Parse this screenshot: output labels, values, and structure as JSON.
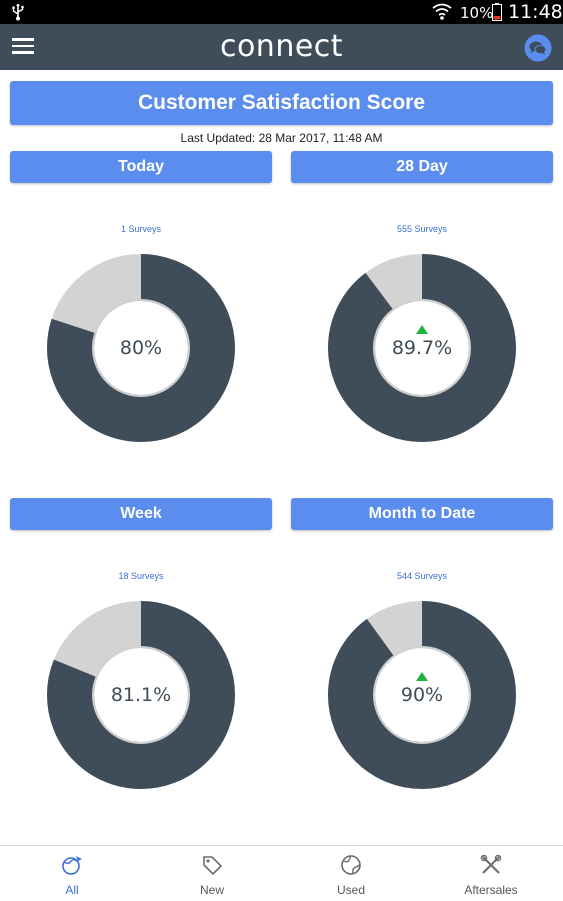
{
  "status_bar": {
    "battery_pct": "10%",
    "time": "11:48"
  },
  "app_bar": {
    "title": "connect",
    "menu_icon": "hamburger-menu-icon",
    "chat_icon": "chat-bubbles-icon"
  },
  "banner": {
    "title": "Customer Satisfaction Score",
    "last_updated": "Last Updated: 28 Mar 2017, 11:48 AM"
  },
  "colors": {
    "accent": "#5b8def",
    "app_bar": "#3e4d59",
    "donut_filled": "#3e4d59",
    "donut_remaining": "#d3d3d3",
    "trend_up": "#1db33b",
    "survey_link": "#3b6fd6"
  },
  "panels": [
    {
      "period": "Today",
      "surveys": "1 Surveys",
      "score_label": "80%",
      "score": 80,
      "trend": ""
    },
    {
      "period": "28 Day",
      "surveys": "555 Surveys",
      "score_label": "89.7%",
      "score": 89.7,
      "trend": "up"
    },
    {
      "period": "Week",
      "surveys": "18 Surveys",
      "score_label": "81.1%",
      "score": 81.1,
      "trend": ""
    },
    {
      "period": "Month to Date",
      "surveys": "544 Surveys",
      "score_label": "90%",
      "score": 90,
      "trend": "up"
    }
  ],
  "bottom_nav": {
    "items": [
      {
        "label": "All",
        "icon": "all-globe-icon",
        "active": true
      },
      {
        "label": "New",
        "icon": "new-tag-icon",
        "active": false
      },
      {
        "label": "Used",
        "icon": "used-globe-icon",
        "active": false
      },
      {
        "label": "Aftersales",
        "icon": "aftersales-tools-icon",
        "active": false
      }
    ]
  }
}
